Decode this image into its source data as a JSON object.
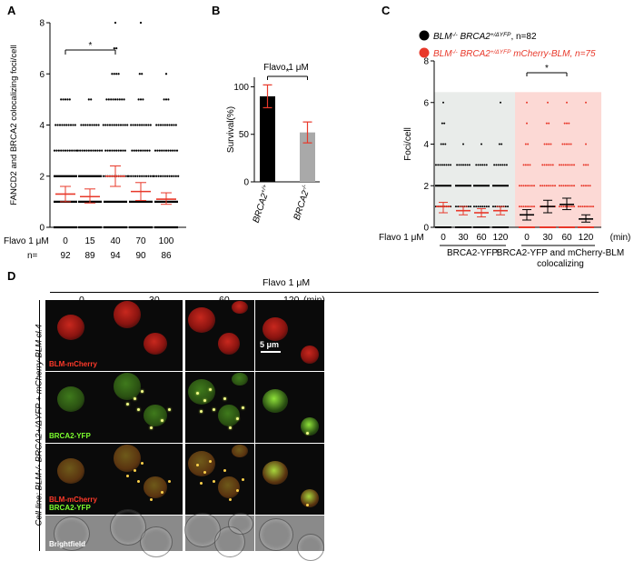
{
  "panels": {
    "A": {
      "letter": "A",
      "ylabel": "FANCD2 and BRCA2 colocalizing foci/cell",
      "xrow_label": "Flavo 1 μM",
      "nrow_label": "n=",
      "sig": "*"
    },
    "B": {
      "letter": "B",
      "title": "Flavo 1 μM",
      "ylabel": "Survival(%)",
      "sig": "*"
    },
    "C": {
      "letter": "C",
      "ylabel": "Foci/cell",
      "legend1_genotype": "BLM",
      "legend1_sup": "-/-",
      "legend1_rest": " BRCA2",
      "legend1_sup2": "+/ΔYFP",
      "legend1_n": ", n=82",
      "legend2_genotype": "BLM",
      "legend2_sup": "-/-",
      "legend2_rest": " BRCA2",
      "legend2_sup2": "+/ΔYFP",
      "legend2_extra": " mCherry-BLM",
      "legend2_n": ", n=75",
      "xrow_label": "Flavo 1 μM",
      "xrow_unit": "(min)",
      "group1": "BRCA2-YFP",
      "group2_line1": "BRCA2-YFP and mCherry-BLM",
      "group2_line2": "colocalizing",
      "sig": "*"
    },
    "D": {
      "letter": "D",
      "title": "Flavo 1 μM",
      "unit": "(min)",
      "times": [
        "0",
        "30",
        "60",
        "120"
      ],
      "side_label": "Cell line: BLM-/- BRCA2+/ΔYFP + mCherry-BLM cl.4",
      "row_labels": {
        "mcherry": "BLM-mCherry",
        "yfp": "BRCA2-YFP",
        "merge1": "BLM-mCherry",
        "merge2": "BRCA2-YFP",
        "bf": "Brightfield"
      },
      "scalebar": "5 μm"
    }
  },
  "colors": {
    "red": "#e8382a",
    "green": "#7cff2e",
    "black": "#000000",
    "gray": "#a9a9a9",
    "pinkbg": "#fcd9d5",
    "graybg": "#e9ecea"
  },
  "chart_data": [
    {
      "type": "scatter",
      "title": "",
      "ylabel": "FANCD2 and BRCA2 colocalizing foci/cell",
      "xlabel": "Flavo 1 μM",
      "categories": [
        "0",
        "15",
        "40",
        "70",
        "100"
      ],
      "n": [
        "92",
        "89",
        "94",
        "90",
        "86"
      ],
      "ylim": [
        0,
        8
      ],
      "yticks": [
        "0",
        "2",
        "4",
        "6",
        "8"
      ],
      "means": [
        1.3,
        1.2,
        2.0,
        1.4,
        1.1
      ],
      "sem_low": [
        1.0,
        0.95,
        1.6,
        1.05,
        0.9
      ],
      "sem_high": [
        1.6,
        1.5,
        2.4,
        1.75,
        1.35
      ],
      "significance": {
        "between": [
          "0",
          "40"
        ],
        "label": "*"
      }
    },
    {
      "type": "bar",
      "title": "Flavo 1 μM",
      "ylabel": "Survival(%)",
      "categories": [
        "BRCA2+/+",
        "BRCA2-/-"
      ],
      "values": [
        90,
        52
      ],
      "err_low": [
        78,
        41
      ],
      "err_high": [
        102,
        63
      ],
      "ylim": [
        0,
        110
      ],
      "yticks": [
        "0",
        "50",
        "100"
      ],
      "colors": [
        "#000000",
        "#a9a9a9"
      ],
      "significance": {
        "between": [
          "BRCA2+/+",
          "BRCA2-/-"
        ],
        "label": "*"
      }
    },
    {
      "type": "scatter",
      "title": "",
      "ylabel": "Foci/cell",
      "xlabel": "Flavo 1 μM",
      "categories": [
        "0",
        "30",
        "60",
        "120",
        "0",
        "30",
        "60",
        "120"
      ],
      "groups": [
        "BRCA2-YFP",
        "BRCA2-YFP and mCherry-BLM colocalizing"
      ],
      "ylim": [
        0,
        8
      ],
      "yticks": [
        "0",
        "2",
        "4",
        "6",
        "8"
      ],
      "series": [
        {
          "name": "BLM-/- BRCA2+/ΔYFP, n=82",
          "color": "#000000",
          "means": [
            1.0,
            0.8,
            0.7,
            0.8
          ],
          "sem_low": [
            0.7,
            0.6,
            0.5,
            0.6
          ],
          "sem_high": [
            1.2,
            1.0,
            0.9,
            1.0
          ]
        },
        {
          "name": "BLM-/- BRCA2+/ΔYFP mCherry-BLM, n=75",
          "color": "#e8382a",
          "means": [
            0.6,
            1.0,
            1.1,
            0.4
          ],
          "sem_low": [
            0.35,
            0.7,
            0.85,
            0.25
          ],
          "sem_high": [
            0.85,
            1.3,
            1.4,
            0.6
          ]
        }
      ],
      "shaded_ylim": [
        0,
        6.5
      ],
      "significance": {
        "between": [
          "0 (colocalizing)",
          "60 (colocalizing)"
        ],
        "label": "*"
      }
    }
  ]
}
